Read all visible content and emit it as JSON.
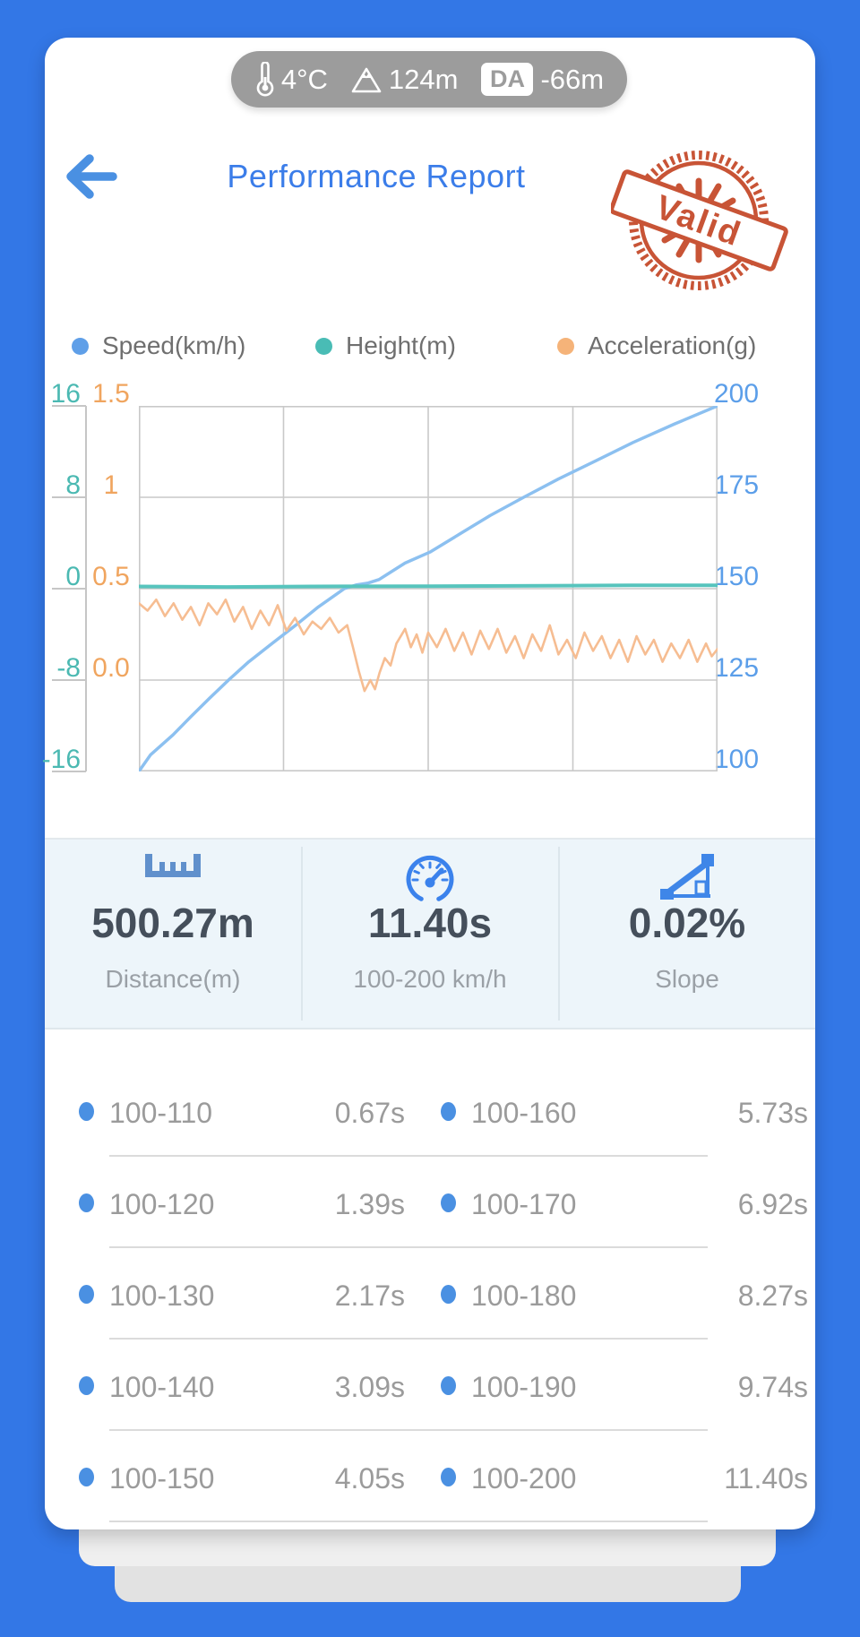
{
  "colors": {
    "background_blue": "#3377e6",
    "accent_blue": "#4a90e2",
    "title_blue": "#3b7de9",
    "teal": "#4bb9b2",
    "orange": "#f0a55f",
    "stamp_red": "#c64b2c",
    "value_dark": "#454f5b",
    "muted_gray": "#9b9b9b",
    "stats_background": "#edf5fa"
  },
  "status_pill": {
    "temperature": "4°C",
    "altitude": "124m",
    "da_label": "DA",
    "da_value": "-66m"
  },
  "header": {
    "title": "Performance Report",
    "stamp_text": "Valid"
  },
  "legend": [
    {
      "label": "Speed(km/h)",
      "color": "#5f9fe8"
    },
    {
      "label": "Height(m)",
      "color": "#49bcb5"
    },
    {
      "label": "Acceleration(g)",
      "color": "#f5b379"
    }
  ],
  "chart": {
    "teal_axis_labels": [
      "16",
      "8",
      "0",
      "-8",
      "-16"
    ],
    "orange_axis_labels": [
      "1.5",
      "1",
      "0.5",
      "0.0"
    ],
    "blue_axis_labels": [
      "200",
      "175",
      "150",
      "125",
      "100"
    ]
  },
  "chart_data": {
    "type": "line",
    "title": "",
    "xlabel": "",
    "x_axis": {
      "range_percent_of_run": [
        0,
        100
      ],
      "tick_labels_visible": false
    },
    "grid": true,
    "legend_position": "top",
    "axes": {
      "teal_left": {
        "label": "Height(m)",
        "range": [
          -16,
          16
        ]
      },
      "orange_left": {
        "label": "Acceleration(g)",
        "range": [
          -0.5,
          1.5
        ]
      },
      "blue_right": {
        "label": "Speed(km/h)",
        "range": [
          100,
          200
        ]
      }
    },
    "series": [
      {
        "name": "Speed(km/h)",
        "scale": "speed",
        "color": "#8cc0f0",
        "points": [
          [
            0,
            100
          ],
          [
            2,
            104.5
          ],
          [
            5.9,
            110
          ],
          [
            9,
            115
          ],
          [
            12.2,
            120
          ],
          [
            15.5,
            125
          ],
          [
            19,
            130
          ],
          [
            23,
            135
          ],
          [
            27.1,
            140
          ],
          [
            31,
            145
          ],
          [
            35.5,
            150
          ],
          [
            37.5,
            151
          ],
          [
            39.5,
            151.5
          ],
          [
            41.5,
            152.5
          ],
          [
            43.5,
            154.5
          ],
          [
            46,
            157
          ],
          [
            50.3,
            160
          ],
          [
            55.5,
            165
          ],
          [
            60.7,
            170
          ],
          [
            66.5,
            175
          ],
          [
            72.5,
            180
          ],
          [
            79,
            185
          ],
          [
            85.4,
            190
          ],
          [
            92.5,
            195
          ],
          [
            100,
            200
          ]
        ]
      },
      {
        "name": "Height(m)",
        "scale": "height",
        "color": "#57c4bd",
        "points": [
          [
            0,
            0.2
          ],
          [
            15,
            0.15
          ],
          [
            30,
            0.2
          ],
          [
            50,
            0.22
          ],
          [
            70,
            0.25
          ],
          [
            85,
            0.3
          ],
          [
            100,
            0.3
          ]
        ]
      },
      {
        "name": "Acceleration(g)",
        "scale": "accel",
        "color": "#f6bd92",
        "points": [
          [
            0,
            0.42
          ],
          [
            1.5,
            0.38
          ],
          [
            3,
            0.44
          ],
          [
            4.5,
            0.35
          ],
          [
            6,
            0.42
          ],
          [
            7.5,
            0.33
          ],
          [
            9,
            0.4
          ],
          [
            10.5,
            0.3
          ],
          [
            12,
            0.42
          ],
          [
            13.5,
            0.36
          ],
          [
            15,
            0.44
          ],
          [
            16.5,
            0.32
          ],
          [
            18,
            0.4
          ],
          [
            19.5,
            0.28
          ],
          [
            21,
            0.38
          ],
          [
            22.5,
            0.3
          ],
          [
            24,
            0.41
          ],
          [
            25.5,
            0.27
          ],
          [
            27,
            0.34
          ],
          [
            28.5,
            0.25
          ],
          [
            30,
            0.32
          ],
          [
            31.5,
            0.28
          ],
          [
            33,
            0.34
          ],
          [
            34.5,
            0.26
          ],
          [
            36,
            0.3
          ],
          [
            37,
            0.18
          ],
          [
            38,
            0.05
          ],
          [
            39,
            -0.06
          ],
          [
            40,
            0.0
          ],
          [
            40.8,
            -0.05
          ],
          [
            41.6,
            0.04
          ],
          [
            42.5,
            0.12
          ],
          [
            43.5,
            0.08
          ],
          [
            44.5,
            0.2
          ],
          [
            46,
            0.28
          ],
          [
            47,
            0.18
          ],
          [
            48,
            0.25
          ],
          [
            49,
            0.15
          ],
          [
            50,
            0.26
          ],
          [
            51.5,
            0.18
          ],
          [
            53,
            0.28
          ],
          [
            54.5,
            0.16
          ],
          [
            56,
            0.26
          ],
          [
            57.5,
            0.14
          ],
          [
            59,
            0.27
          ],
          [
            60.5,
            0.17
          ],
          [
            62,
            0.28
          ],
          [
            63.5,
            0.15
          ],
          [
            65,
            0.24
          ],
          [
            66.5,
            0.12
          ],
          [
            68,
            0.25
          ],
          [
            69.5,
            0.16
          ],
          [
            71,
            0.3
          ],
          [
            72.5,
            0.14
          ],
          [
            74,
            0.22
          ],
          [
            75.5,
            0.12
          ],
          [
            77,
            0.26
          ],
          [
            78.5,
            0.16
          ],
          [
            80,
            0.24
          ],
          [
            81.5,
            0.12
          ],
          [
            83,
            0.22
          ],
          [
            84.5,
            0.1
          ],
          [
            86,
            0.24
          ],
          [
            87.5,
            0.14
          ],
          [
            89,
            0.22
          ],
          [
            90.5,
            0.1
          ],
          [
            92,
            0.2
          ],
          [
            93.5,
            0.12
          ],
          [
            95,
            0.22
          ],
          [
            96.5,
            0.1
          ],
          [
            98,
            0.2
          ],
          [
            99,
            0.13
          ],
          [
            100,
            0.17
          ]
        ]
      }
    ]
  },
  "stats": [
    {
      "icon": "ruler-icon",
      "value": "500.27m",
      "label": "Distance(m)"
    },
    {
      "icon": "speedometer-icon",
      "value": "11.40s",
      "label": "100-200 km/h"
    },
    {
      "icon": "slope-icon",
      "value": "0.02%",
      "label": "Slope"
    }
  ],
  "splits_rows": [
    {
      "l_range": "100-110",
      "l_time": "0.67s",
      "r_range": "100-160",
      "r_time": "5.73s"
    },
    {
      "l_range": "100-120",
      "l_time": "1.39s",
      "r_range": "100-170",
      "r_time": "6.92s"
    },
    {
      "l_range": "100-130",
      "l_time": "2.17s",
      "r_range": "100-180",
      "r_time": "8.27s"
    },
    {
      "l_range": "100-140",
      "l_time": "3.09s",
      "r_range": "100-190",
      "r_time": "9.74s"
    },
    {
      "l_range": "100-150",
      "l_time": "4.05s",
      "r_range": "100-200",
      "r_time": "11.40s"
    }
  ]
}
